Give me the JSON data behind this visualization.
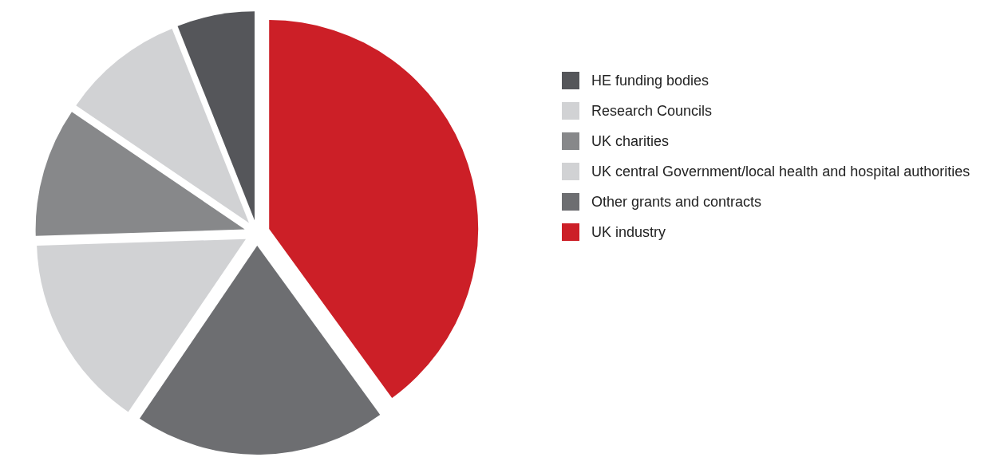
{
  "chart_data": {
    "type": "pie",
    "categories": [
      "HE funding bodies",
      "Research Councils",
      "UK charities",
      "UK central Government/local health and hospital authorities",
      "Other grants and contracts",
      "UK industry"
    ],
    "values": [
      6,
      9.5,
      10,
      15,
      19.5,
      40
    ],
    "colors": [
      "#55565a",
      "#d1d2d4",
      "#87888a",
      "#d1d2d4",
      "#6d6e71",
      "#cc1f27"
    ],
    "legend": "right"
  }
}
